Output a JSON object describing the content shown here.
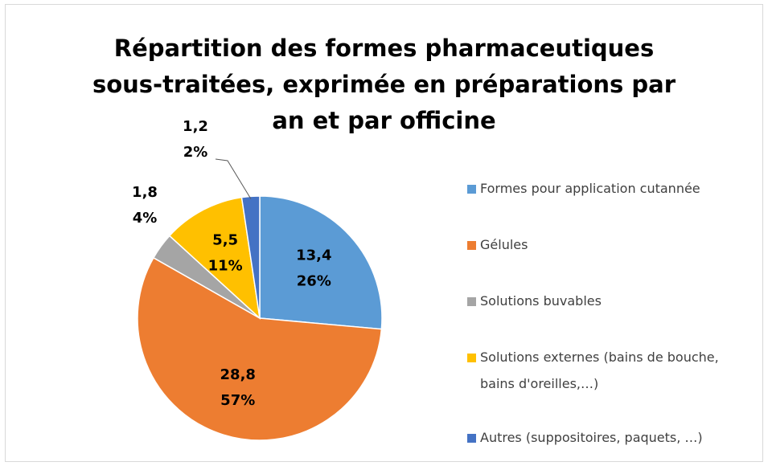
{
  "chart_data": {
    "type": "pie",
    "title": "Répartition des formes pharmaceutiques sous-traitées, exprimée en préparations par an et par officine",
    "categories": [
      "Formes pour application cutannée",
      "Gélules",
      "Solutions buvables",
      "Solutions externes (bains de bouche, bains d'oreilles,…)",
      "Autres (suppositoires, paquets, …)"
    ],
    "values": [
      13.4,
      28.8,
      1.8,
      5.5,
      1.2
    ],
    "value_labels": [
      "13,4",
      "28,8",
      "1,8",
      "5,5",
      "1,2"
    ],
    "percent_labels": [
      "26%",
      "57%",
      "4%",
      "11%",
      "2%"
    ],
    "colors": [
      "#5b9bd5",
      "#ed7d31",
      "#a5a5a5",
      "#ffc000",
      "#4472c4"
    ],
    "legend": "right"
  }
}
